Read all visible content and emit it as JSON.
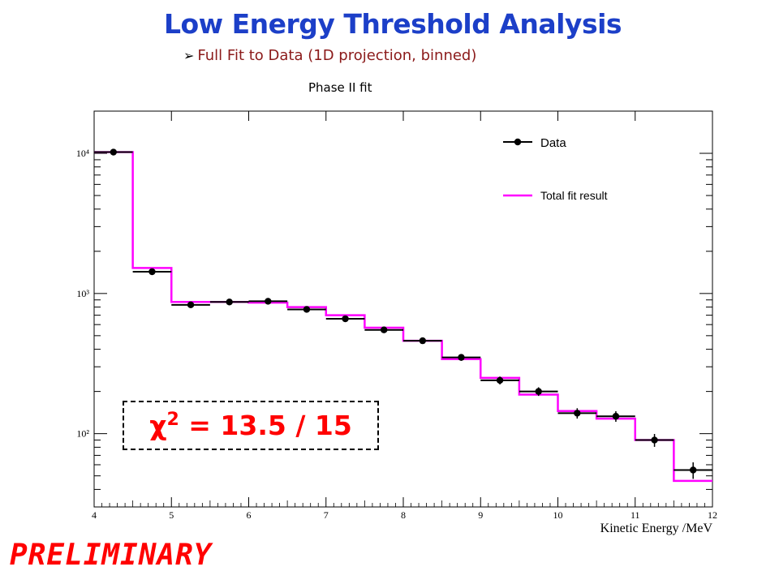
{
  "slide": {
    "title": "Low Energy Threshold Analysis",
    "bullet_marker": "➢",
    "bullet": "Full Fit to Data (1D projection, binned)",
    "plot_title": "Phase II fit",
    "chi2_symbol": "χ",
    "chi2_exponent": "2",
    "chi2_value": "= 13.5 / 15",
    "preliminary": "PRELIMINARY"
  },
  "chart_data": {
    "type": "line",
    "title": "Phase II fit",
    "xlabel": "Kinetic Energy /MeV",
    "ylabel": "",
    "log_y": true,
    "xlim": [
      4,
      12
    ],
    "ylim": [
      30,
      20000
    ],
    "xticks": [
      "4",
      "5",
      "6",
      "7",
      "8",
      "9",
      "10",
      "11",
      "12"
    ],
    "yticks": [
      "10²",
      "10³",
      "10⁴"
    ],
    "legend_position": "top-right",
    "grid": false,
    "bin_edges": [
      4,
      4.5,
      5,
      5.5,
      6,
      6.5,
      7,
      7.5,
      8,
      8.5,
      9,
      9.5,
      10,
      10.5,
      11,
      11.5,
      12
    ],
    "series": [
      {
        "name": "Data",
        "style": "points",
        "color": "#000000",
        "x": [
          4.25,
          4.75,
          5.25,
          5.75,
          6.25,
          6.75,
          7.25,
          7.75,
          8.25,
          8.75,
          9.25,
          9.75,
          10.25,
          10.75,
          11.25,
          11.75
        ],
        "values": [
          10200,
          1430,
          830,
          870,
          880,
          770,
          660,
          550,
          460,
          350,
          240,
          200,
          140,
          133,
          90,
          55
        ]
      },
      {
        "name": "Total fit result",
        "style": "step",
        "color": "#ff00ff",
        "values": [
          10200,
          1520,
          870,
          870,
          860,
          800,
          700,
          570,
          460,
          340,
          250,
          190,
          145,
          128,
          90,
          46
        ]
      }
    ]
  }
}
